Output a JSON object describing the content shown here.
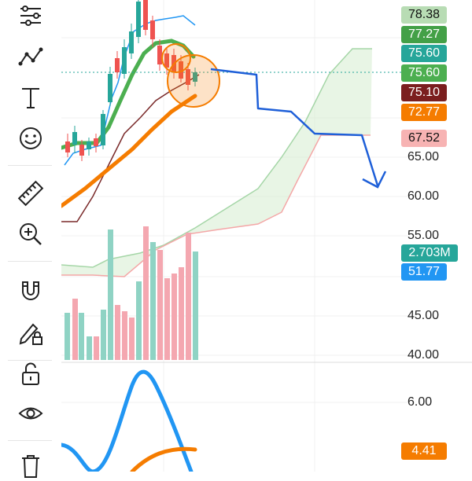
{
  "toolbar": {
    "tools": [
      {
        "name": "indicators-tool-icon"
      },
      {
        "name": "trend-line-tool-icon"
      },
      {
        "name": "text-tool-icon"
      },
      {
        "name": "emoji-tool-icon"
      },
      {
        "name": "ruler-tool-icon"
      },
      {
        "name": "zoom-in-tool-icon"
      },
      {
        "name": "magnet-tool-icon"
      },
      {
        "name": "lock-drawing-tool-icon"
      },
      {
        "name": "unlock-tool-icon"
      },
      {
        "name": "eye-tool-icon"
      },
      {
        "name": "trash-tool-icon"
      }
    ]
  },
  "price_badges": [
    {
      "value": "78.38",
      "bg": "#b8dcb4",
      "fg": "#111"
    },
    {
      "value": "77.27",
      "bg": "#43a047",
      "fg": "#fff"
    },
    {
      "value": "75.60",
      "bg": "#26a69a",
      "fg": "#fff"
    },
    {
      "value": "75.60",
      "bg": "#4caf50",
      "fg": "#fff"
    },
    {
      "value": "75.10",
      "bg": "#7b1e1e",
      "fg": "#fff"
    },
    {
      "value": "72.77",
      "bg": "#f57c00",
      "fg": "#fff"
    },
    {
      "value": "67.52",
      "bg": "#f7b3b3",
      "fg": "#111"
    }
  ],
  "price_axis": [
    "65.00",
    "60.00",
    "55.00",
    "45.00",
    "40.00"
  ],
  "volume_badges": [
    {
      "value": "2.703M",
      "bg": "#26a69a",
      "fg": "#fff"
    },
    {
      "value": "51.77",
      "bg": "#2196f3",
      "fg": "#fff"
    }
  ],
  "oscillator_axis": [
    "6.00"
  ],
  "oscillator_badge": {
    "value": "4.41",
    "bg": "#f57c00",
    "fg": "#fff"
  }
}
